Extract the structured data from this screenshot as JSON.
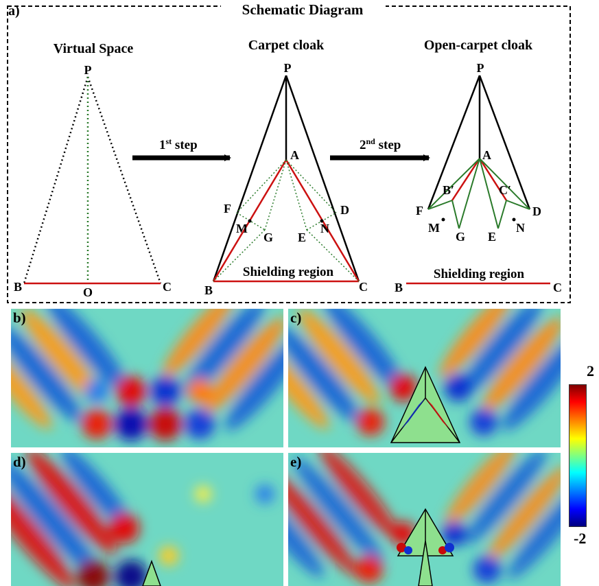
{
  "schematic": {
    "panel_label": "a)",
    "title": "Schematic Diagram",
    "virtual_space": {
      "title": "Virtual Space",
      "points": {
        "P": "P",
        "B": "B",
        "O": "O",
        "C": "C"
      }
    },
    "carpet_cloak": {
      "title": "Carpet cloak",
      "shielding": "Shielding region",
      "points": {
        "P": "P",
        "A": "A",
        "F": "F",
        "M": "M",
        "G": "G",
        "E": "E",
        "N": "N",
        "D": "D",
        "B": "B",
        "C": "C"
      }
    },
    "open_carpet_cloak": {
      "title": "Open-carpet cloak",
      "shielding": "Shielding region",
      "points": {
        "P": "P",
        "A": "A",
        "B_prime": "B′",
        "C_prime": "C′",
        "F": "F",
        "M": "M",
        "G": "G",
        "E": "E",
        "N": "N",
        "D": "D",
        "B": "B",
        "C": "C"
      }
    },
    "step1": {
      "base": "1",
      "sup": "st",
      "word": "step"
    },
    "step2": {
      "base": "2",
      "sup": "nd",
      "word": "step"
    }
  },
  "field_panels": [
    {
      "label": "b)"
    },
    {
      "label": "c)"
    },
    {
      "label": "d)"
    },
    {
      "label": "e)"
    }
  ],
  "colorbar": {
    "max_label": "2",
    "min_label": "-2",
    "range": [
      -2,
      2
    ],
    "colormap": "jet"
  },
  "colors": {
    "red_line": "#cc1111",
    "green_line": "#2a7a2a",
    "black_line": "#000000",
    "cloak_fill": "#8ee08e"
  }
}
